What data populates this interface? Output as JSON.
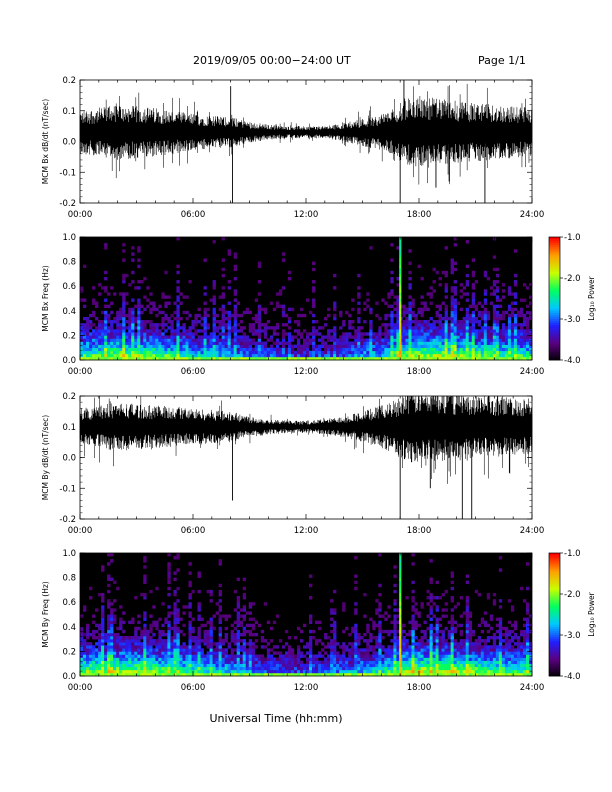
{
  "header": {
    "title": "2019/09/05  00:00−24:00 UT",
    "page": "Page 1/1"
  },
  "xlabel": "Universal Time (hh:mm)",
  "colorbar": {
    "label": "Log₁₀ Power",
    "ticks": [
      "-1.0",
      "-2.0",
      "-3.0",
      "-4.0"
    ],
    "range": [
      -4.0,
      -1.0
    ],
    "colors": [
      "#000000",
      "#5a0080",
      "#2020ff",
      "#00c8ff",
      "#00ff60",
      "#c8ff00",
      "#ffa000",
      "#ff0000"
    ]
  },
  "chart_data": [
    {
      "type": "line",
      "ylabel": "MCM Bx dB/dt (nT/sec)",
      "x_ticks": [
        "00:00",
        "06:00",
        "12:00",
        "18:00",
        "24:00"
      ],
      "xlim": [
        0,
        24
      ],
      "y_ticks": [
        "0.2",
        "0.1",
        "0.0",
        "-0.1",
        "-0.2"
      ],
      "ylim": [
        -0.2,
        0.2
      ],
      "series": [
        {
          "baseline": 0.03,
          "envelope_hours": [
            0,
            2,
            4,
            6,
            8,
            9,
            10,
            11,
            12,
            13,
            14,
            15,
            16,
            16.8,
            17.2,
            18,
            20,
            22,
            24
          ],
          "envelope_amplitude": [
            0.07,
            0.09,
            0.08,
            0.06,
            0.05,
            0.035,
            0.025,
            0.02,
            0.02,
            0.02,
            0.03,
            0.045,
            0.06,
            0.08,
            0.11,
            0.12,
            0.1,
            0.09,
            0.08
          ],
          "spikes": [
            {
              "x": 8.1,
              "y": -0.2
            },
            {
              "x": 8.0,
              "y": 0.18
            },
            {
              "x": 17.0,
              "y": -0.2
            },
            {
              "x": 17.2,
              "y": 0.2
            },
            {
              "x": 21.5,
              "y": -0.2
            },
            {
              "x": 18.9,
              "y": -0.15
            },
            {
              "x": 19.6,
              "y": -0.13
            }
          ]
        }
      ]
    },
    {
      "type": "heatmap",
      "ylabel": "MCM Bx Freq (Hz)",
      "x_ticks": [
        "00:00",
        "06:00",
        "12:00",
        "18:00",
        "24:00"
      ],
      "xlim": [
        0,
        24
      ],
      "y_ticks": [
        "1.0",
        "0.8",
        "0.6",
        "0.4",
        "0.2",
        "0.0"
      ],
      "ylim": [
        0,
        1.0
      ],
      "activity_hours": [
        0,
        2,
        4,
        6,
        8,
        10,
        12,
        14,
        16,
        17,
        18,
        20,
        22,
        24
      ],
      "activity_level": [
        0.7,
        0.8,
        0.75,
        0.6,
        0.5,
        0.35,
        0.3,
        0.4,
        0.55,
        0.8,
        0.85,
        0.8,
        0.7,
        0.65
      ],
      "broadband_event_hour": 17.0
    },
    {
      "type": "line",
      "ylabel": "MCM By dB/dt (nT/sec)",
      "x_ticks": [
        "00:00",
        "06:00",
        "12:00",
        "18:00",
        "24:00"
      ],
      "xlim": [
        0,
        24
      ],
      "y_ticks": [
        "0.2",
        "0.1",
        "0.0",
        "-0.1",
        "-0.2"
      ],
      "ylim": [
        -0.2,
        0.2
      ],
      "series": [
        {
          "baseline": 0.1,
          "envelope_hours": [
            0,
            2,
            4,
            6,
            8,
            9,
            10,
            11,
            12,
            13,
            14,
            15,
            16,
            16.8,
            17.2,
            18,
            20,
            22,
            24
          ],
          "envelope_amplitude": [
            0.06,
            0.08,
            0.07,
            0.06,
            0.05,
            0.035,
            0.025,
            0.02,
            0.02,
            0.025,
            0.035,
            0.05,
            0.07,
            0.09,
            0.12,
            0.12,
            0.11,
            0.1,
            0.09
          ],
          "spikes": [
            {
              "x": 8.1,
              "y": -0.14
            },
            {
              "x": 17.0,
              "y": -0.2
            },
            {
              "x": 20.3,
              "y": -0.2
            },
            {
              "x": 20.8,
              "y": -0.2
            },
            {
              "x": 18.6,
              "y": -0.1
            },
            {
              "x": 22.8,
              "y": -0.05
            }
          ]
        }
      ]
    },
    {
      "type": "heatmap",
      "ylabel": "MCM By Freq (Hz)",
      "x_ticks": [
        "00:00",
        "06:00",
        "12:00",
        "18:00",
        "24:00"
      ],
      "xlim": [
        0,
        24
      ],
      "y_ticks": [
        "1.0",
        "0.8",
        "0.6",
        "0.4",
        "0.2",
        "0.0"
      ],
      "ylim": [
        0,
        1.0
      ],
      "activity_hours": [
        0,
        2,
        4,
        6,
        8,
        10,
        12,
        14,
        16,
        17,
        18,
        20,
        22,
        24
      ],
      "activity_level": [
        0.8,
        0.85,
        0.8,
        0.65,
        0.55,
        0.4,
        0.35,
        0.45,
        0.6,
        0.85,
        0.9,
        0.85,
        0.75,
        0.7
      ],
      "broadband_event_hour": 17.0
    }
  ]
}
